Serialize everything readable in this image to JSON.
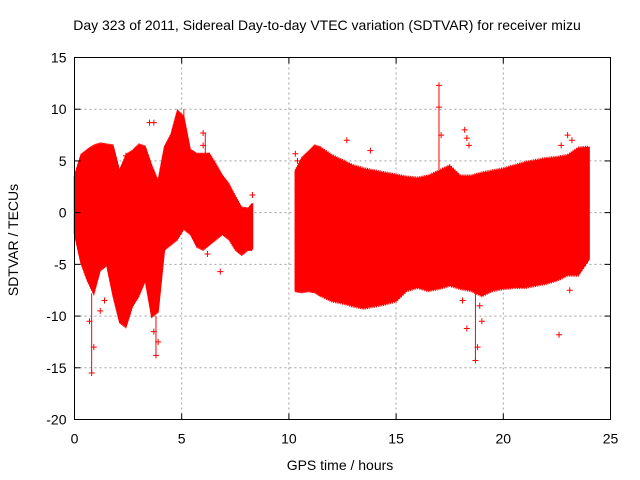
{
  "chart_data": {
    "type": "scatter",
    "title": "Day 323 of 2011, Sidereal Day-to-day VTEC variation (SDTVAR) for receiver mizu",
    "xlabel": "GPS time / hours",
    "ylabel": "SDTVAR / TECUs",
    "xlim": [
      0,
      25
    ],
    "ylim": [
      -20,
      15
    ],
    "x_ticks": [
      0,
      5,
      10,
      15,
      20,
      25
    ],
    "y_ticks": [
      -20,
      -15,
      -10,
      -5,
      0,
      5,
      10,
      15
    ],
    "grid": true,
    "marker": "+",
    "color": "#ff0000",
    "series": [
      {
        "name": "SDTVAR",
        "segments": [
          {
            "name": "envelope-part-1",
            "x": [
              0.0,
              0.3,
              0.6,
              0.9,
              1.2,
              1.5,
              1.8,
              2.1,
              2.4,
              2.7,
              3.0,
              3.3,
              3.6,
              3.9,
              4.2,
              4.5,
              4.8,
              5.1,
              5.4,
              5.7,
              6.0,
              6.3,
              6.6,
              6.9,
              7.2,
              7.5,
              7.8,
              8.1,
              8.3
            ],
            "upper": [
              3.5,
              5.5,
              6.0,
              6.4,
              6.6,
              6.5,
              6.4,
              4.0,
              5.5,
              5.9,
              6.5,
              6.3,
              4.5,
              3.0,
              6.3,
              7.5,
              9.8,
              9.2,
              6.0,
              5.6,
              5.6,
              5.6,
              4.6,
              3.5,
              2.7,
              1.5,
              0.4,
              0.3,
              0.8
            ],
            "lower": [
              -2.0,
              -4.8,
              -6.5,
              -7.8,
              -5.5,
              -5.0,
              -8.0,
              -10.5,
              -11.0,
              -9.0,
              -8.0,
              -6.5,
              -10.0,
              -9.5,
              -3.5,
              -3.0,
              -2.5,
              -1.5,
              -2.0,
              -3.2,
              -3.5,
              -3.0,
              -2.5,
              -2.0,
              -2.5,
              -3.5,
              -4.0,
              -3.5,
              -3.5
            ]
          },
          {
            "name": "envelope-part-2",
            "x": [
              10.3,
              10.6,
              10.9,
              11.2,
              11.5,
              12.0,
              12.5,
              13.0,
              13.5,
              14.0,
              14.5,
              15.0,
              15.5,
              16.0,
              16.5,
              17.0,
              17.5,
              18.0,
              18.5,
              19.0,
              19.5,
              20.0,
              20.5,
              21.0,
              21.5,
              22.0,
              22.5,
              23.0,
              23.5,
              24.0
            ],
            "upper": [
              4.0,
              5.2,
              5.8,
              6.4,
              6.2,
              5.5,
              5.0,
              4.5,
              4.2,
              4.0,
              3.8,
              3.6,
              3.4,
              3.3,
              3.5,
              4.0,
              4.5,
              3.5,
              3.5,
              3.8,
              4.0,
              4.2,
              4.5,
              4.8,
              5.0,
              5.2,
              5.3,
              5.5,
              6.2,
              6.3
            ],
            "lower": [
              -7.5,
              -7.6,
              -7.5,
              -7.6,
              -8.0,
              -8.5,
              -8.7,
              -9.0,
              -9.2,
              -9.0,
              -8.8,
              -8.5,
              -7.5,
              -7.2,
              -7.5,
              -7.3,
              -7.0,
              -7.3,
              -7.5,
              -8.0,
              -7.5,
              -7.3,
              -7.2,
              -7.2,
              -7.0,
              -6.8,
              -6.5,
              -6.0,
              -6.0,
              -4.5
            ]
          }
        ],
        "outlier_points": [
          {
            "x": 0.8,
            "y": -15.5
          },
          {
            "x": 0.9,
            "y": -13.0
          },
          {
            "x": 0.7,
            "y": -10.5
          },
          {
            "x": 1.2,
            "y": -9.5
          },
          {
            "x": 1.4,
            "y": -8.5
          },
          {
            "x": 3.5,
            "y": 8.7
          },
          {
            "x": 3.7,
            "y": 8.7
          },
          {
            "x": 3.8,
            "y": -13.8
          },
          {
            "x": 3.9,
            "y": -12.5
          },
          {
            "x": 3.7,
            "y": -11.5
          },
          {
            "x": 1.2,
            "y": 5.5
          },
          {
            "x": 2.4,
            "y": 5.5
          },
          {
            "x": 6.0,
            "y": 7.7
          },
          {
            "x": 6.0,
            "y": 6.5
          },
          {
            "x": 6.8,
            "y": -5.7
          },
          {
            "x": 6.2,
            "y": -4.0
          },
          {
            "x": 8.3,
            "y": 1.7
          },
          {
            "x": 10.3,
            "y": 5.7
          },
          {
            "x": 10.4,
            "y": 5.0
          },
          {
            "x": 12.7,
            "y": 7.0
          },
          {
            "x": 13.8,
            "y": 6.0
          },
          {
            "x": 17.0,
            "y": 12.3
          },
          {
            "x": 17.0,
            "y": 10.2
          },
          {
            "x": 17.1,
            "y": 7.5
          },
          {
            "x": 18.2,
            "y": 8.0
          },
          {
            "x": 18.3,
            "y": 7.2
          },
          {
            "x": 18.4,
            "y": 6.5
          },
          {
            "x": 18.1,
            "y": -8.5
          },
          {
            "x": 18.3,
            "y": -11.2
          },
          {
            "x": 18.7,
            "y": -14.3
          },
          {
            "x": 18.8,
            "y": -13.0
          },
          {
            "x": 19.0,
            "y": -10.5
          },
          {
            "x": 18.9,
            "y": -9.0
          },
          {
            "x": 22.6,
            "y": -11.8
          },
          {
            "x": 23.0,
            "y": 7.5
          },
          {
            "x": 23.2,
            "y": 7.0
          },
          {
            "x": 22.7,
            "y": 6.5
          },
          {
            "x": 23.1,
            "y": -7.5
          },
          {
            "x": 23.4,
            "y": -5.5
          }
        ],
        "vertical_spikes": [
          {
            "x": 17.0,
            "y_from": 4.0,
            "y_to": 12.3
          },
          {
            "x": 18.7,
            "y_from": -7.5,
            "y_to": -14.3
          },
          {
            "x": 0.8,
            "y_from": -7.8,
            "y_to": -15.5
          },
          {
            "x": 3.8,
            "y_from": -10.0,
            "y_to": -13.8
          },
          {
            "x": 5.1,
            "y_from": 7.5,
            "y_to": 10.0
          },
          {
            "x": 6.1,
            "y_from": 5.6,
            "y_to": 7.7
          }
        ]
      }
    ]
  }
}
